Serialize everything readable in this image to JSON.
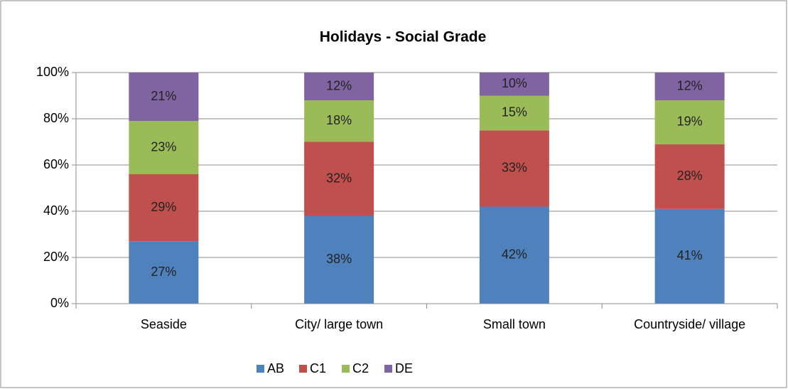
{
  "chart_data": {
    "type": "stacked_bar",
    "title": "Holidays - Social Grade",
    "categories": [
      "Seaside",
      "City/ large town",
      "Small town",
      "Countryside/ village"
    ],
    "series": [
      {
        "name": "AB",
        "color": "#4f81bd",
        "values": [
          27,
          38,
          42,
          41
        ],
        "value_labels": [
          "27%",
          "38%",
          "42%",
          "41%"
        ]
      },
      {
        "name": "C1",
        "color": "#c0504d",
        "values": [
          29,
          32,
          33,
          28
        ],
        "value_labels": [
          "29%",
          "32%",
          "33%",
          "28%"
        ]
      },
      {
        "name": "C2",
        "color": "#9bbb59",
        "values": [
          23,
          18,
          15,
          19
        ],
        "value_labels": [
          "23%",
          "18%",
          "15%",
          "19%"
        ]
      },
      {
        "name": "DE",
        "color": "#8064a2",
        "values": [
          21,
          12,
          10,
          12
        ],
        "value_labels": [
          "21%",
          "12%",
          "10%",
          "12%"
        ]
      }
    ],
    "ylim": [
      0,
      100
    ],
    "yticks": [
      {
        "value": 0,
        "label": "0%"
      },
      {
        "value": 20,
        "label": "20%"
      },
      {
        "value": 40,
        "label": "40%"
      },
      {
        "value": 60,
        "label": "60%"
      },
      {
        "value": 80,
        "label": "80%"
      },
      {
        "value": 100,
        "label": "100%"
      }
    ],
    "grid": true,
    "legend": "bottom"
  }
}
